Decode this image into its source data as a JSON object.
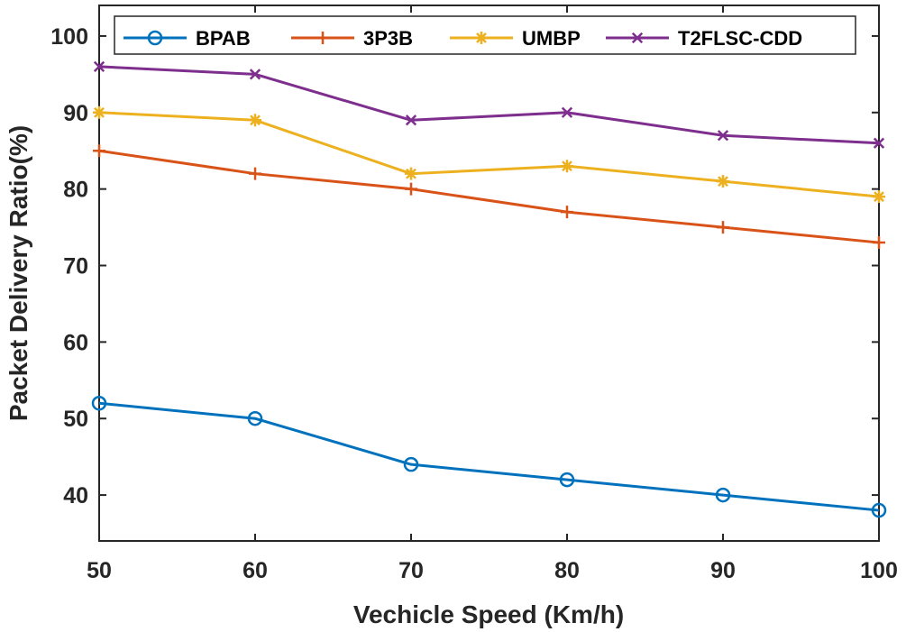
{
  "chart_data": {
    "type": "line",
    "title": "",
    "xlabel": "Vechicle Speed (Km/h)",
    "ylabel": "Packet Delivery Ratio(%)",
    "x": [
      50,
      60,
      70,
      80,
      90,
      100
    ],
    "xlim": [
      50,
      100
    ],
    "ylim": [
      34,
      104
    ],
    "xticks": [
      "50",
      "60",
      "70",
      "80",
      "90",
      "100"
    ],
    "yticks": [
      "40",
      "50",
      "60",
      "70",
      "80",
      "90",
      "100"
    ],
    "grid": false,
    "legend_position": "top",
    "series": [
      {
        "name": "BPAB",
        "values": [
          52,
          50,
          44,
          42,
          40,
          38
        ],
        "color": "#0072BD",
        "marker": "circle"
      },
      {
        "name": "3P3B",
        "values": [
          85,
          82,
          80,
          77,
          75,
          73
        ],
        "color": "#D95319",
        "marker": "plus"
      },
      {
        "name": "UMBP",
        "values": [
          90,
          89,
          82,
          83,
          81,
          79
        ],
        "color": "#EDB120",
        "marker": "asterisk"
      },
      {
        "name": "T2FLSC-CDD",
        "values": [
          96,
          95,
          89,
          90,
          87,
          86
        ],
        "color": "#7E2F8E",
        "marker": "cross"
      }
    ]
  }
}
